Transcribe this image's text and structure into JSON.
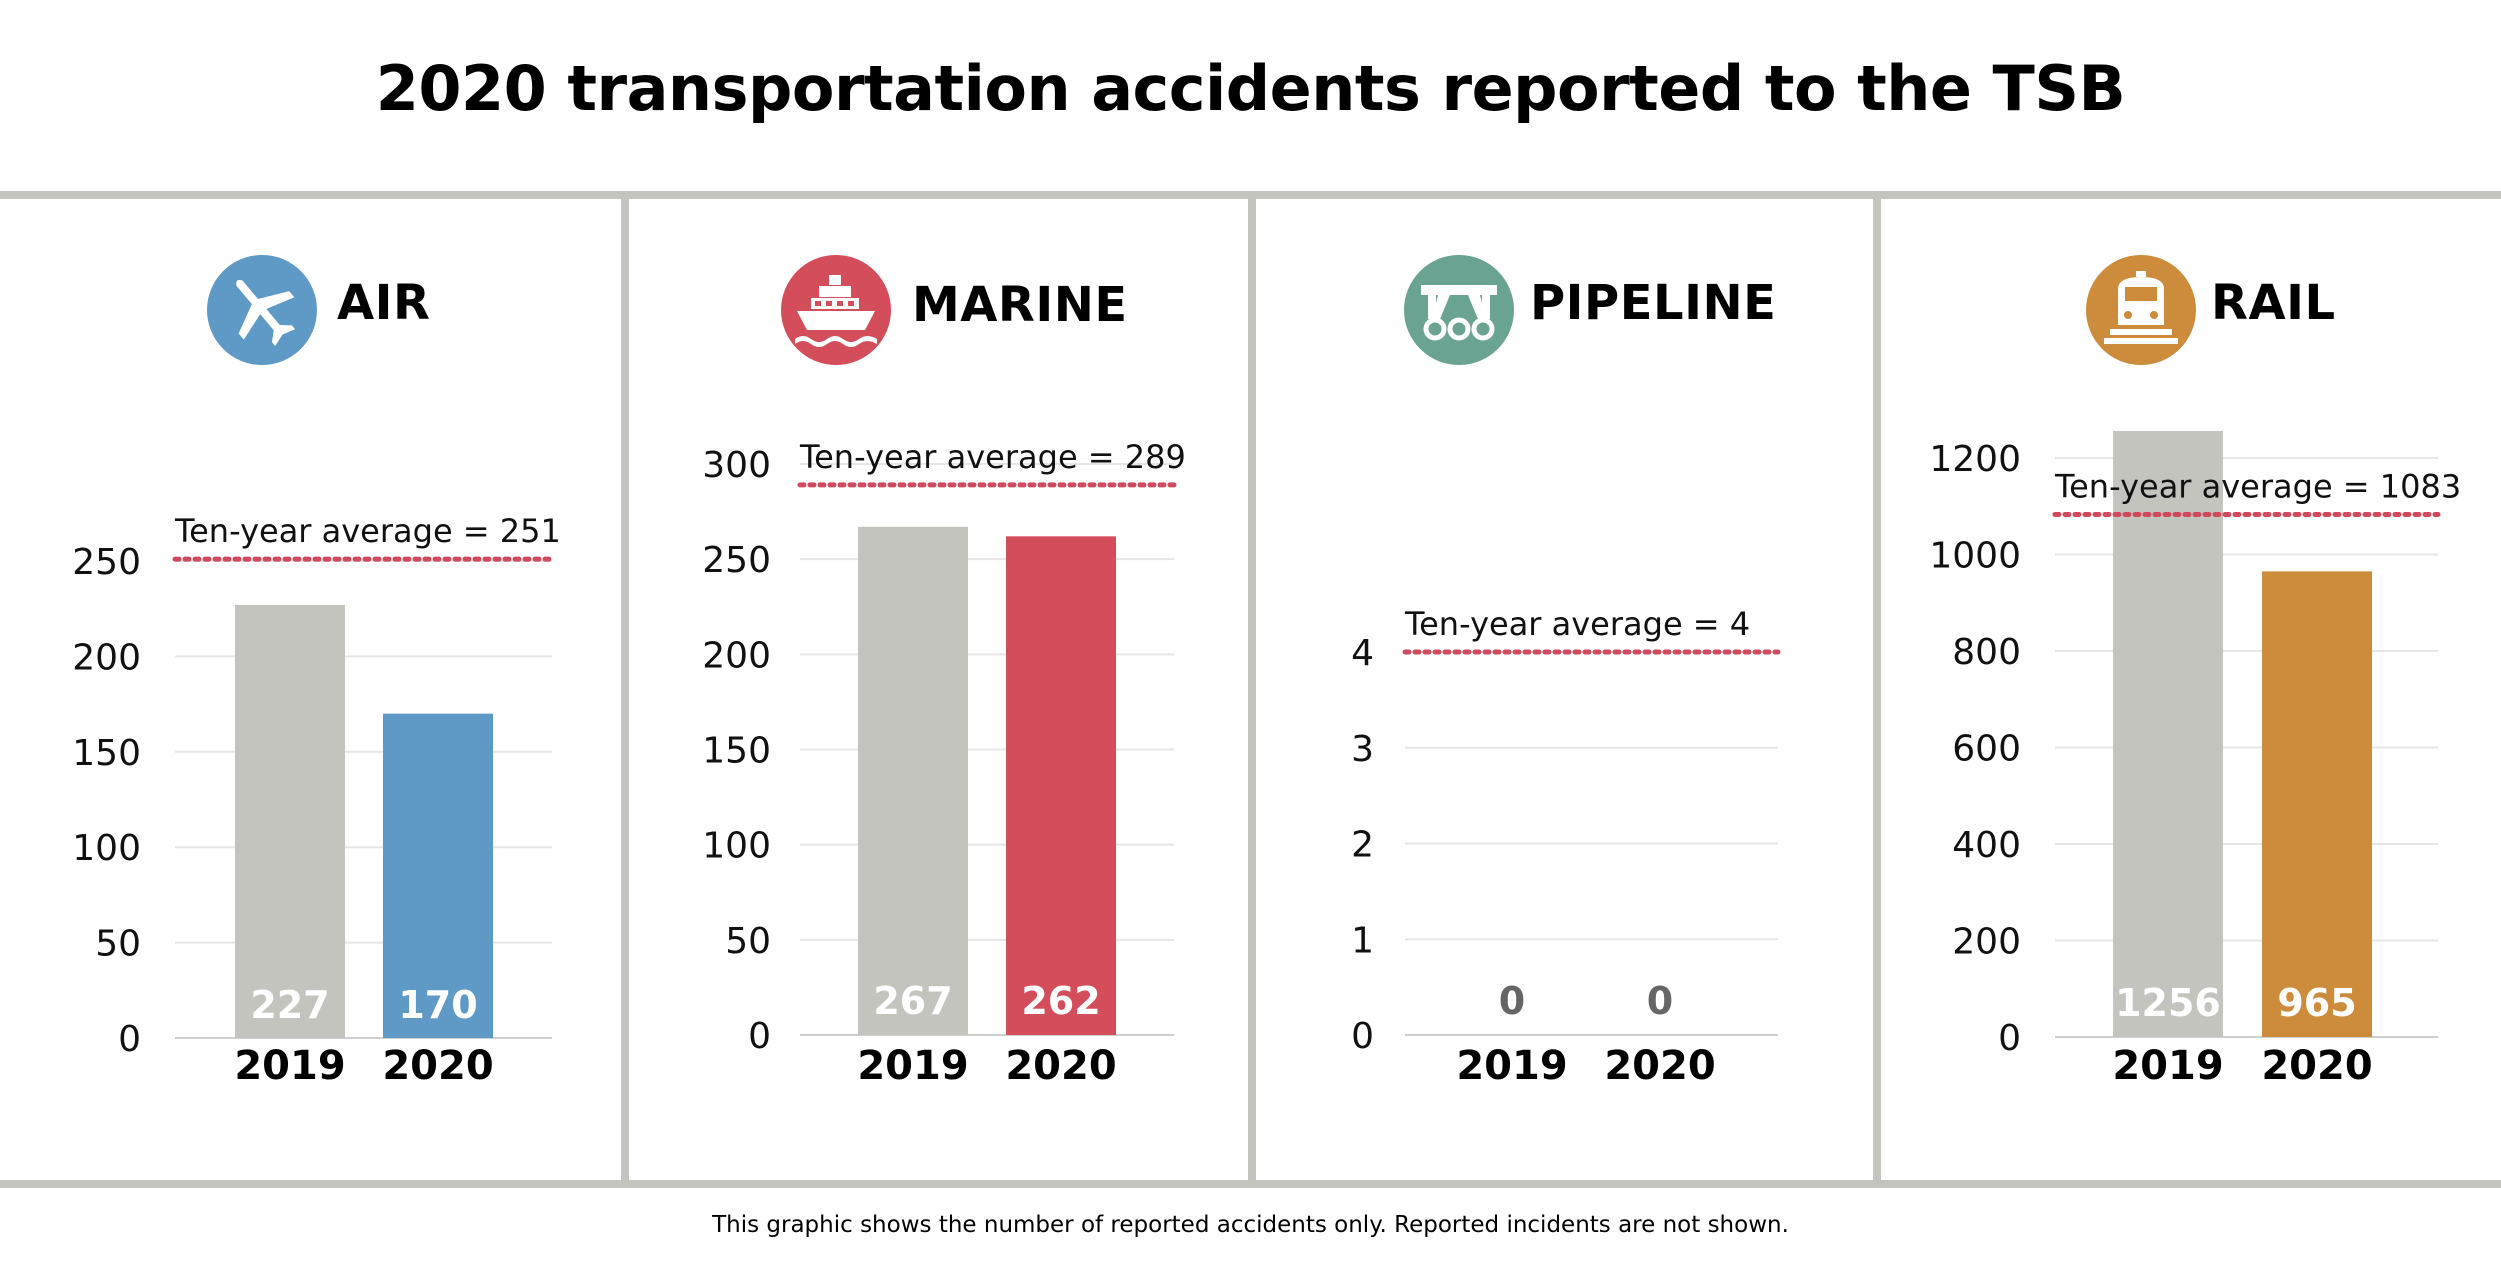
{
  "title": "2020 transportation accidents reported to the TSB",
  "footnote": "This graphic shows the number of reported accidents only. Reported incidents are not shown.",
  "chart_data": [
    {
      "type": "bar",
      "title": "AIR",
      "icon": "airplane-icon",
      "color": "#5f99c6",
      "categories": [
        "2019",
        "2020"
      ],
      "values": [
        227,
        170
      ],
      "bar_colors": [
        "#c4c4bf",
        "#5f99c6"
      ],
      "ylim": [
        0,
        250
      ],
      "yticks": [
        0,
        50,
        100,
        150,
        200,
        250
      ],
      "ten_year_average": 251,
      "average_label": "Ten-year average = 251"
    },
    {
      "type": "bar",
      "title": "MARINE",
      "icon": "ship-icon",
      "color": "#d44d5b",
      "categories": [
        "2019",
        "2020"
      ],
      "values": [
        267,
        262
      ],
      "bar_colors": [
        "#c4c4bf",
        "#d44d5b"
      ],
      "ylim": [
        0,
        300
      ],
      "yticks": [
        0,
        50,
        100,
        150,
        200,
        250,
        300
      ],
      "ten_year_average": 289,
      "average_label": "Ten-year average = 289"
    },
    {
      "type": "bar",
      "title": "PIPELINE",
      "icon": "pipeline-icon",
      "color": "#6aa392",
      "categories": [
        "2019",
        "2020"
      ],
      "values": [
        0,
        0
      ],
      "bar_colors": [
        "#c4c4bf",
        "#6aa392"
      ],
      "ylim": [
        0,
        4
      ],
      "yticks": [
        0,
        1,
        2,
        3,
        4
      ],
      "ten_year_average": 4,
      "average_label": "Ten-year average = 4"
    },
    {
      "type": "bar",
      "title": "RAIL",
      "icon": "train-icon",
      "color": "#cc8c3c",
      "categories": [
        "2019",
        "2020"
      ],
      "values": [
        1256,
        965
      ],
      "bar_colors": [
        "#c4c4bf",
        "#cc8c3c"
      ],
      "ylim": [
        0,
        1200
      ],
      "yticks": [
        0,
        200,
        400,
        600,
        800,
        1000,
        1200
      ],
      "ten_year_average": 1083,
      "average_label": "Ten-year average = 1083"
    }
  ]
}
